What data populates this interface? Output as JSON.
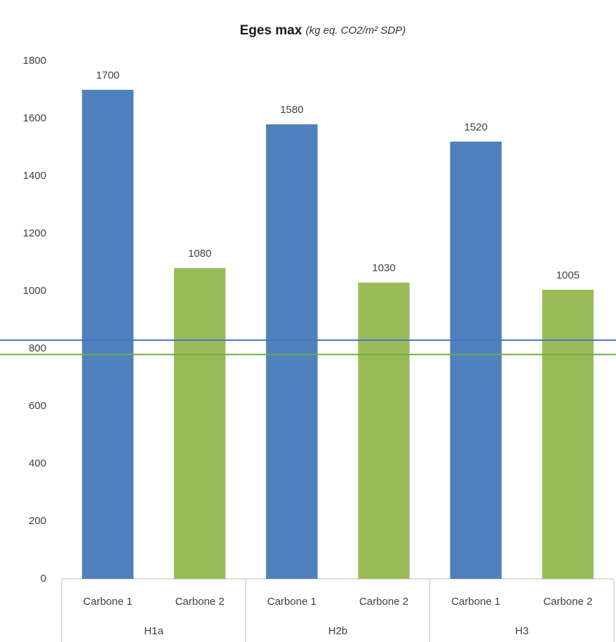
{
  "chart_data": {
    "type": "bar",
    "title": "Eges max",
    "subtitle": "(kg eq. CO2/m² SDP)",
    "categories": [
      "H1a",
      "H2b",
      "H3"
    ],
    "series": [
      {
        "name": "Carbone 1",
        "color": "#4f81bd",
        "values": [
          1700,
          1580,
          1520
        ]
      },
      {
        "name": "Carbone 2",
        "color": "#9bbb59",
        "values": [
          1080,
          1030,
          1005
        ]
      }
    ],
    "reference_lines": [
      {
        "color": "#4472c4",
        "value": 830
      },
      {
        "color": "#70ad47",
        "value": 780
      }
    ],
    "ylim": [
      0,
      1800
    ],
    "yticks": [
      0,
      200,
      400,
      600,
      800,
      1000,
      1200,
      1400,
      1600,
      1800
    ],
    "grid": false
  }
}
